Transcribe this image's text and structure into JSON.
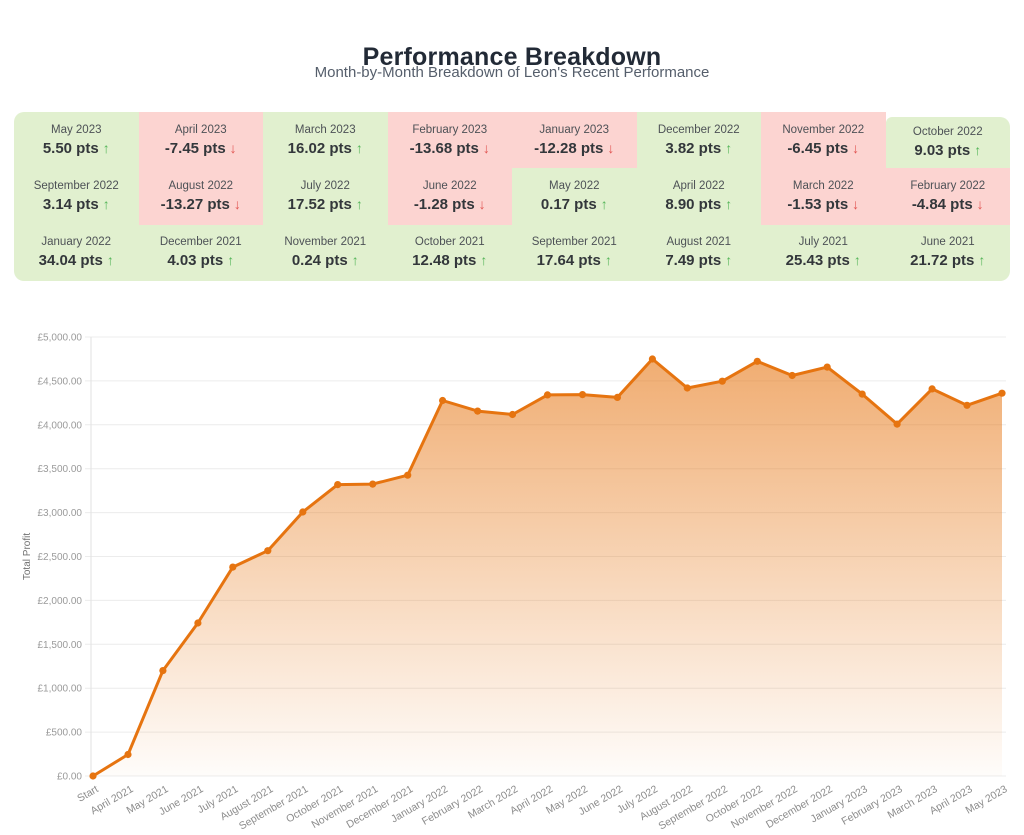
{
  "header": {
    "title": "Performance Breakdown",
    "subtitle": "Month-by-Month Breakdown of Leon's Recent Performance"
  },
  "monthly_grid": {
    "cells": [
      {
        "month": "May 2023",
        "value": "5.50 pts",
        "direction": "up"
      },
      {
        "month": "April 2023",
        "value": "-7.45 pts",
        "direction": "down"
      },
      {
        "month": "March 2023",
        "value": "16.02 pts",
        "direction": "up"
      },
      {
        "month": "February 2023",
        "value": "-13.68 pts",
        "direction": "down"
      },
      {
        "month": "January 2023",
        "value": "-12.28 pts",
        "direction": "down"
      },
      {
        "month": "December 2022",
        "value": "3.82 pts",
        "direction": "up"
      },
      {
        "month": "November 2022",
        "value": "-6.45 pts",
        "direction": "down"
      },
      {
        "month": "October 2022",
        "value": "9.03 pts",
        "direction": "up"
      },
      {
        "month": "September 2022",
        "value": "3.14 pts",
        "direction": "up"
      },
      {
        "month": "August 2022",
        "value": "-13.27 pts",
        "direction": "down"
      },
      {
        "month": "July 2022",
        "value": "17.52 pts",
        "direction": "up"
      },
      {
        "month": "June 2022",
        "value": "-1.28 pts",
        "direction": "down"
      },
      {
        "month": "May 2022",
        "value": "0.17 pts",
        "direction": "up"
      },
      {
        "month": "April 2022",
        "value": "8.90 pts",
        "direction": "up"
      },
      {
        "month": "March 2022",
        "value": "-1.53 pts",
        "direction": "down"
      },
      {
        "month": "February 2022",
        "value": "-4.84 pts",
        "direction": "down"
      },
      {
        "month": "January 2022",
        "value": "34.04 pts",
        "direction": "up"
      },
      {
        "month": "December 2021",
        "value": "4.03 pts",
        "direction": "up"
      },
      {
        "month": "November 2021",
        "value": "0.24 pts",
        "direction": "up"
      },
      {
        "month": "October 2021",
        "value": "12.48 pts",
        "direction": "up"
      },
      {
        "month": "September 2021",
        "value": "17.64 pts",
        "direction": "up"
      },
      {
        "month": "August 2021",
        "value": "7.49 pts",
        "direction": "up"
      },
      {
        "month": "July 2021",
        "value": "25.43 pts",
        "direction": "up"
      },
      {
        "month": "June 2021",
        "value": "21.72 pts",
        "direction": "up"
      }
    ],
    "up_arrow_glyph": "↑",
    "down_arrow_glyph": "↓"
  },
  "chart_data": {
    "type": "area",
    "ylabel": "Total Profit",
    "x": [
      "Start",
      "April 2021",
      "May 2021",
      "June 2021",
      "July 2021",
      "August 2021",
      "September 2021",
      "October 2021",
      "November 2021",
      "December 2021",
      "January 2022",
      "February 2022",
      "March 2022",
      "April 2022",
      "May 2022",
      "June 2022",
      "July 2022",
      "August 2022",
      "September 2022",
      "October 2022",
      "November 2022",
      "December 2022",
      "January 2023",
      "February 2023",
      "March 2023",
      "April 2023",
      "May 2023"
    ],
    "values": [
      0,
      245,
      1200,
      1743,
      2379,
      2566,
      3007,
      3319,
      3325,
      3426,
      4277,
      4156,
      4117,
      4340,
      4344,
      4312,
      4750,
      4419,
      4497,
      4723,
      4562,
      4657,
      4350,
      4008,
      4409,
      4222,
      4360
    ],
    "ylim": [
      0,
      5000
    ],
    "ytick_step": 500,
    "ytick_labels": [
      "£0.00",
      "£500.00",
      "£1,000.00",
      "£1,500.00",
      "£2,000.00",
      "£2,500.00",
      "£3,000.00",
      "£3,500.00",
      "£4,000.00",
      "£4,500.00",
      "£5,000.00"
    ],
    "grid": true,
    "legend": "none",
    "x_label_rotation": -30
  },
  "colors": {
    "title": "#222A36",
    "subtitle": "#555E6B",
    "positive_bg": "#E1F0CF",
    "negative_bg": "#FCD4D1",
    "month_label": "#4D5156",
    "value_text": "#33373B",
    "up_arrow": "#55B559",
    "down_arrow": "#E15451",
    "line": "#E67410",
    "fill_top": "rgba(230,116,16,0.62)",
    "fill_bottom": "rgba(230,116,16,0.02)",
    "grid_line": "#ECECEC",
    "axis_line": "#E2E2E2",
    "ytick_label": "#9A9A9A",
    "xtick_label": "#8C8C8C",
    "axis_title": "#707070"
  }
}
